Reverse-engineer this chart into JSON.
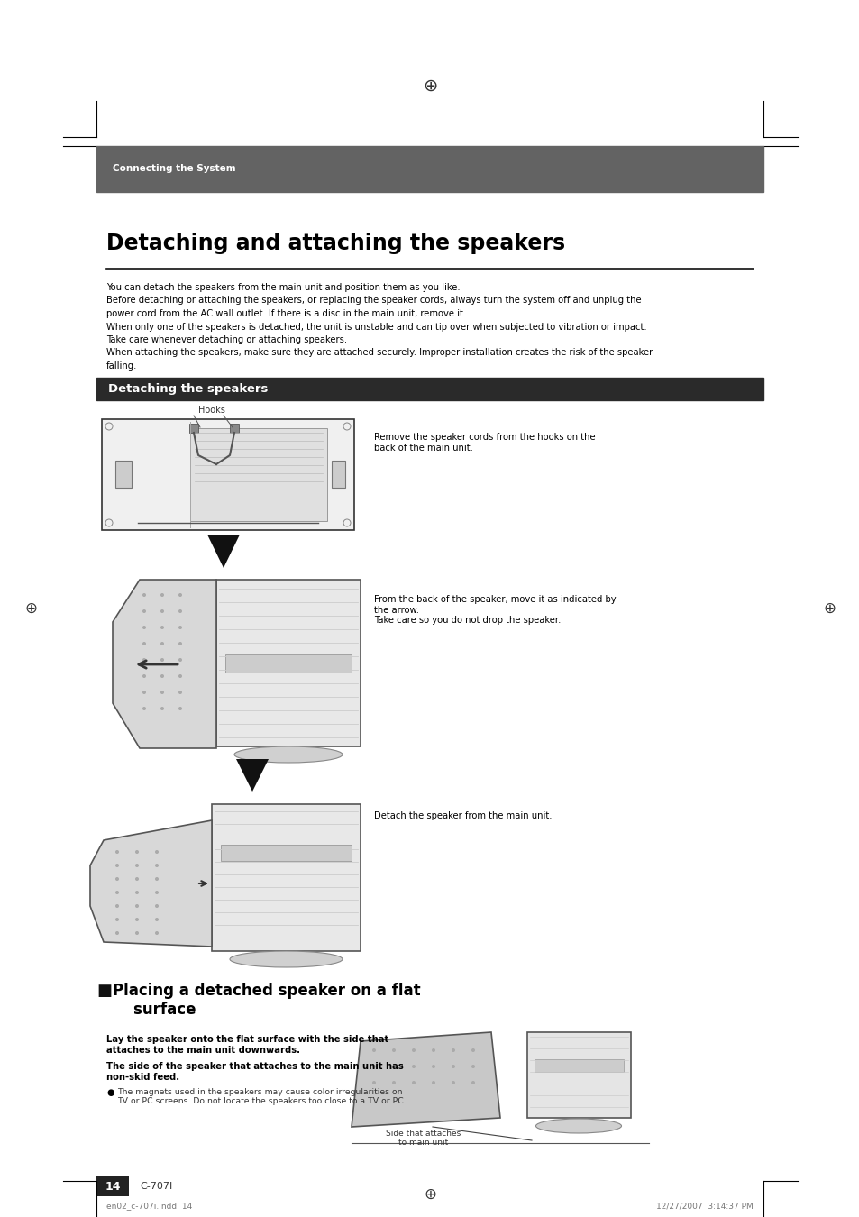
{
  "page_width": 9.54,
  "page_height": 13.5,
  "bg_color": "#ffffff",
  "header_bar_color": "#636363",
  "header_text": "Connecting the System",
  "header_text_color": "#ffffff",
  "header_text_size": 7.5,
  "section_bar_color": "#2a2a2a",
  "main_title": "Detaching and attaching the speakers",
  "main_title_size": 17,
  "section_title": "Detaching the speakers",
  "section_title_size": 9.5,
  "section2_title": "Placing a detached speaker on a flat\n    surface",
  "section2_title_size": 12,
  "intro_lines": [
    "You can detach the speakers from the main unit and position them as you like.",
    "Before detaching or attaching the speakers, or replacing the speaker cords, always turn the system off and unplug the",
    "power cord from the AC wall outlet. If there is a disc in the main unit, remove it.",
    "When only one of the speakers is detached, the unit is unstable and can tip over when subjected to vibration or impact.",
    "Take care whenever detaching or attaching speakers.",
    "When attaching the speakers, make sure they are attached securely. Improper installation creates the risk of the speaker",
    "falling."
  ],
  "text_size": 7.2,
  "right_text1": "Remove the speaker cords from the hooks on the\nback of the main unit.",
  "right_text2": "From the back of the speaker, move it as indicated by\nthe arrow.\nTake care so you do not drop the speaker.",
  "right_text3": "Detach the speaker from the main unit.",
  "body_text1": "Lay the speaker onto the flat surface with the side that\nattaches to the main unit downwards.",
  "body_text2": "The side of the speaker that attaches to the main unit has\nnon-skid feed.",
  "bullet_text": "The magnets used in the speakers may cause color irregularities on\nTV or PC screens. Do not locate the speakers too close to a TV or PC.",
  "caption_text": "Side that attaches\nto main unit",
  "page_num": "14",
  "page_label": "C-707I",
  "footer_left": "en02_c-707i.indd  14",
  "footer_right": "12/27/2007  3:14:37 PM"
}
